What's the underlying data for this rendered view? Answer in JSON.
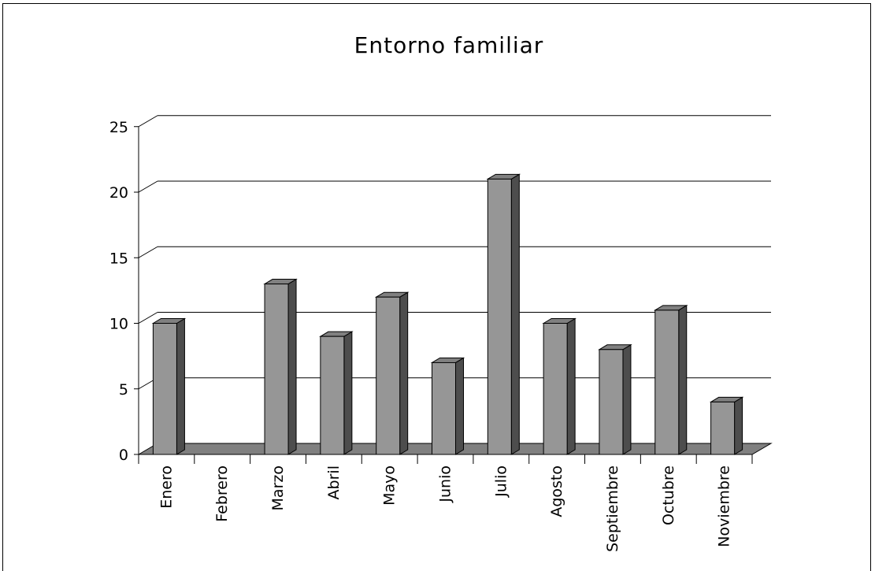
{
  "chart_data": {
    "type": "bar",
    "title": "Entorno familiar",
    "categories": [
      "Enero",
      "Febrero",
      "Marzo",
      "Abril",
      "Mayo",
      "Junio",
      "Julio",
      "Agosto",
      "Septiembre",
      "Octubre",
      "Noviembre"
    ],
    "values": [
      10,
      0,
      13,
      9,
      12,
      7,
      21,
      10,
      8,
      11,
      4
    ],
    "ylim": [
      0,
      25
    ],
    "yticks": [
      0,
      5,
      10,
      15,
      20,
      25
    ],
    "grid": true,
    "legend": "none",
    "colors": {
      "bar_front": "#969696",
      "bar_side": "#4d4d4d",
      "bar_top": "#808080",
      "floor": "#808080",
      "grid": "#000000"
    }
  }
}
